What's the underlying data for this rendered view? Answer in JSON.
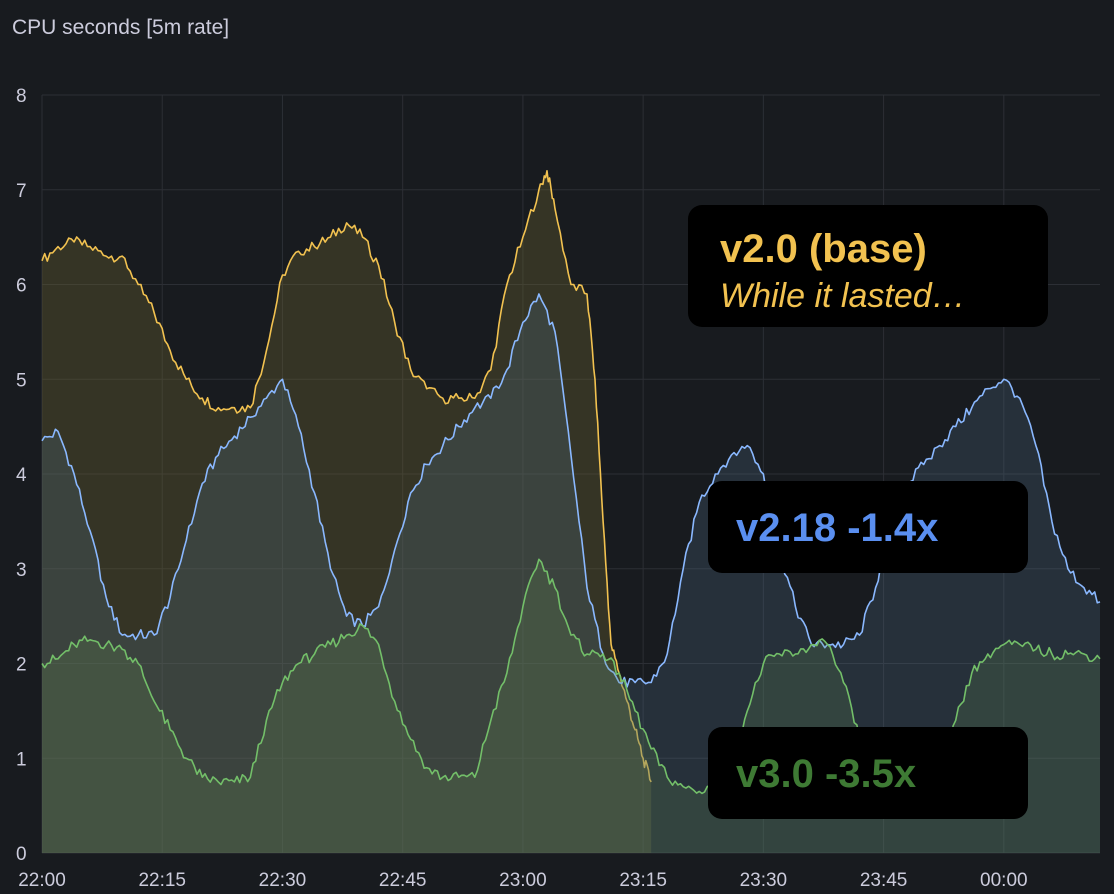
{
  "panel": {
    "title": "CPU seconds [5m rate]"
  },
  "annotations": [
    {
      "line1": "v2.0 (base)",
      "line2": "While it lasted…",
      "color": "#f2c250"
    },
    {
      "line1": "v2.18  -1.4x",
      "color": "#5a8ff0"
    },
    {
      "line1": "v3.0  -3.5x",
      "color": "#3e7a34"
    }
  ],
  "chart_data": {
    "type": "area",
    "title": "CPU seconds [5m rate]",
    "xlabel": "",
    "ylabel": "",
    "ylim": [
      0,
      8
    ],
    "yticks": [
      "0",
      "1",
      "2",
      "3",
      "4",
      "5",
      "6",
      "7",
      "8"
    ],
    "xticks": [
      "22:00",
      "22:15",
      "22:30",
      "22:45",
      "23:00",
      "23:15",
      "23:30",
      "23:45",
      "00:00"
    ],
    "xlim_minutes": [
      0,
      132
    ],
    "grid": true,
    "series": [
      {
        "name": "v2.0 (base)",
        "color": "#f2c250",
        "fill": "rgba(110,100,50,0.35)",
        "x": [
          0,
          2,
          4,
          6,
          8,
          10,
          12,
          14,
          16,
          18,
          20,
          22,
          24,
          26,
          28,
          30,
          32,
          34,
          36,
          38,
          40,
          42,
          44,
          46,
          48,
          50,
          52,
          54,
          56,
          58,
          60,
          62,
          63,
          64,
          66,
          68,
          69,
          70,
          71,
          72,
          73,
          74,
          75,
          76
        ],
        "y": [
          6.25,
          6.4,
          6.45,
          6.4,
          6.3,
          6.3,
          6.0,
          5.7,
          5.3,
          5.0,
          4.8,
          4.7,
          4.7,
          4.7,
          5.3,
          6.1,
          6.35,
          6.4,
          6.5,
          6.65,
          6.5,
          6.2,
          5.6,
          5.1,
          4.9,
          4.8,
          4.8,
          4.8,
          5.1,
          6.0,
          6.5,
          7.0,
          7.2,
          6.8,
          6.0,
          5.9,
          5.0,
          3.5,
          2.2,
          1.9,
          1.6,
          1.3,
          1.0,
          0.75
        ]
      },
      {
        "name": "v2.18",
        "color": "#8ab8ff",
        "fill": "rgba(80,110,140,0.25)",
        "x": [
          0,
          2,
          4,
          6,
          8,
          10,
          12,
          14,
          16,
          18,
          20,
          22,
          24,
          26,
          28,
          30,
          32,
          34,
          36,
          38,
          40,
          42,
          44,
          46,
          48,
          50,
          52,
          54,
          56,
          58,
          60,
          62,
          64,
          66,
          68,
          70,
          72,
          74,
          76,
          78,
          80,
          82,
          84,
          86,
          88,
          90,
          92,
          94,
          96,
          98,
          100,
          102,
          104,
          106,
          108,
          110,
          112,
          114,
          116,
          118,
          120,
          122,
          124,
          126,
          128,
          130,
          132
        ],
        "y": [
          4.35,
          4.45,
          4.0,
          3.4,
          2.7,
          2.3,
          2.3,
          2.3,
          2.7,
          3.3,
          3.9,
          4.2,
          4.4,
          4.6,
          4.8,
          5.0,
          4.5,
          3.8,
          3.0,
          2.5,
          2.4,
          2.6,
          3.2,
          3.8,
          4.1,
          4.3,
          4.5,
          4.7,
          4.8,
          5.1,
          5.6,
          5.9,
          5.5,
          4.2,
          2.8,
          2.1,
          1.8,
          1.8,
          1.8,
          2.1,
          3.0,
          3.7,
          4.0,
          4.2,
          4.3,
          4.0,
          3.2,
          2.6,
          2.2,
          2.2,
          2.2,
          2.3,
          2.8,
          3.5,
          3.9,
          4.1,
          4.3,
          4.5,
          4.7,
          4.9,
          5.0,
          4.8,
          4.3,
          3.5,
          3.0,
          2.8,
          2.65
        ]
      },
      {
        "name": "v3.0",
        "color": "#73bf69",
        "fill": "rgba(100,140,80,0.22)",
        "x": [
          0,
          2,
          4,
          6,
          8,
          10,
          12,
          14,
          16,
          18,
          20,
          22,
          24,
          26,
          28,
          30,
          32,
          34,
          36,
          38,
          40,
          42,
          44,
          46,
          48,
          50,
          52,
          54,
          56,
          58,
          60,
          62,
          64,
          66,
          68,
          70,
          72,
          74,
          76,
          78,
          80,
          82,
          84,
          86,
          88,
          90,
          92,
          94,
          96,
          98,
          100,
          102,
          104,
          106,
          108,
          110,
          112,
          114,
          116,
          118,
          120,
          122,
          124,
          126,
          128,
          130,
          132
        ],
        "y": [
          2.0,
          2.05,
          2.2,
          2.25,
          2.2,
          2.15,
          2.0,
          1.6,
          1.3,
          1.0,
          0.8,
          0.75,
          0.75,
          0.8,
          1.4,
          1.8,
          2.0,
          2.1,
          2.2,
          2.3,
          2.4,
          2.2,
          1.6,
          1.2,
          0.9,
          0.8,
          0.8,
          0.8,
          1.4,
          1.9,
          2.6,
          3.1,
          2.8,
          2.3,
          2.1,
          2.1,
          1.9,
          1.5,
          1.1,
          0.8,
          0.7,
          0.65,
          0.75,
          1.0,
          1.5,
          2.0,
          2.1,
          2.1,
          2.2,
          2.2,
          1.8,
          1.2,
          0.8,
          0.7,
          0.7,
          0.7,
          0.8,
          1.4,
          1.9,
          2.1,
          2.2,
          2.2,
          2.15,
          2.1,
          2.1,
          2.1,
          2.05
        ]
      }
    ]
  }
}
